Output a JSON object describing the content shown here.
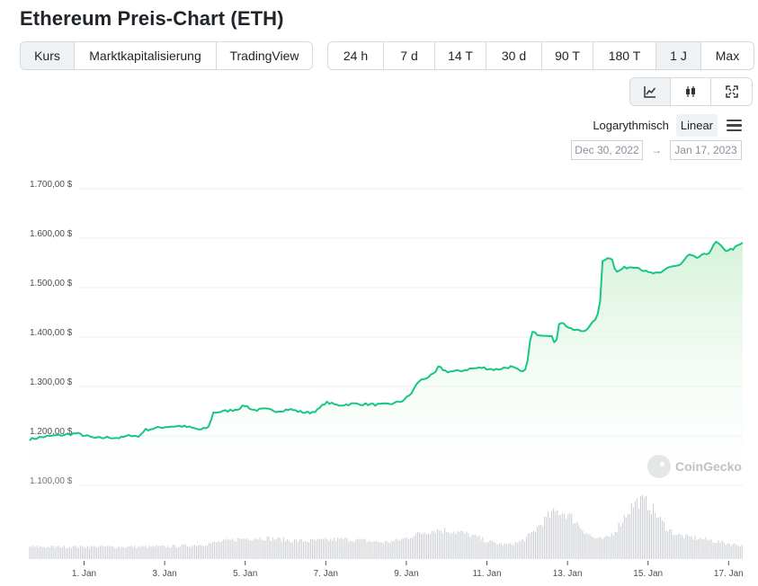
{
  "page_title": "Ethereum Preis-Chart (ETH)",
  "chart_type_tabs": [
    {
      "label": "Kurs",
      "active": true
    },
    {
      "label": "Marktkapitalisierung",
      "active": false
    },
    {
      "label": "TradingView",
      "active": false
    }
  ],
  "range_tabs": [
    {
      "label": "24 h",
      "active": false
    },
    {
      "label": "7 d",
      "active": false
    },
    {
      "label": "14 T",
      "active": false
    },
    {
      "label": "30 d",
      "active": false
    },
    {
      "label": "90 T",
      "active": false
    },
    {
      "label": "180 T",
      "active": false
    },
    {
      "label": "1 J",
      "active": true
    },
    {
      "label": "Max",
      "active": false
    }
  ],
  "view_buttons": [
    {
      "icon": "line-chart-icon",
      "active": true
    },
    {
      "icon": "candlestick-icon",
      "active": false
    },
    {
      "icon": "fullscreen-icon",
      "active": false
    }
  ],
  "scale": {
    "log_label": "Logarythmisch",
    "linear_label": "Linear",
    "selected": "Linear"
  },
  "date_range": {
    "from": "Dec 30, 2022",
    "arrow": "→",
    "to": "Jan 17, 2023"
  },
  "watermark": "CoinGecko",
  "colors": {
    "line": "#16c784",
    "fill_top": "#d3f2d8",
    "volume": "#c9ccd1",
    "grid": "#eceef0"
  },
  "chart_data": {
    "type": "area",
    "title": "Ethereum Preis-Chart (ETH)",
    "xlabel": "",
    "ylabel": "",
    "y_ticks": [
      "1.700,00 $",
      "1.600,00 $",
      "1.500,00 $",
      "1.400,00 $",
      "1.300,00 $",
      "1.200,00 $",
      "1.100,00 $"
    ],
    "y_tick_values": [
      1700,
      1600,
      1500,
      1400,
      1300,
      1200,
      1100
    ],
    "ylim": [
      1100,
      1700
    ],
    "x_range_days": [
      30.65,
      48.35
    ],
    "x_ticks": [
      {
        "label": "1. Jan",
        "day": 32
      },
      {
        "label": "3. Jan",
        "day": 34
      },
      {
        "label": "5. Jan",
        "day": 36
      },
      {
        "label": "7. Jan",
        "day": 38
      },
      {
        "label": "9. Jan",
        "day": 40
      },
      {
        "label": "11. Jan",
        "day": 42
      },
      {
        "label": "13. Jan",
        "day": 44
      },
      {
        "label": "15. Jan",
        "day": 46
      },
      {
        "label": "17. Jan",
        "day": 48
      }
    ],
    "series": [
      {
        "values": [
          [
            30.65,
            1193
          ],
          [
            30.9,
            1197
          ],
          [
            31.2,
            1200
          ],
          [
            31.5,
            1202
          ],
          [
            31.8,
            1205
          ],
          [
            32.0,
            1201
          ],
          [
            32.3,
            1195
          ],
          [
            32.6,
            1197
          ],
          [
            32.9,
            1196
          ],
          [
            33.2,
            1202
          ],
          [
            33.35,
            1198
          ],
          [
            33.5,
            1212
          ],
          [
            33.8,
            1216
          ],
          [
            34.1,
            1219
          ],
          [
            34.4,
            1220
          ],
          [
            34.7,
            1216
          ],
          [
            34.9,
            1212
          ],
          [
            35.1,
            1218
          ],
          [
            35.2,
            1247
          ],
          [
            35.5,
            1250
          ],
          [
            35.8,
            1254
          ],
          [
            36.0,
            1262
          ],
          [
            36.2,
            1252
          ],
          [
            36.5,
            1254
          ],
          [
            36.8,
            1250
          ],
          [
            37.1,
            1254
          ],
          [
            37.4,
            1248
          ],
          [
            37.6,
            1247
          ],
          [
            37.8,
            1252
          ],
          [
            38.0,
            1268
          ],
          [
            38.3,
            1262
          ],
          [
            38.7,
            1265
          ],
          [
            39.0,
            1264
          ],
          [
            39.4,
            1263
          ],
          [
            39.7,
            1266
          ],
          [
            39.9,
            1271
          ],
          [
            40.1,
            1283
          ],
          [
            40.3,
            1310
          ],
          [
            40.5,
            1318
          ],
          [
            40.7,
            1325
          ],
          [
            40.8,
            1340
          ],
          [
            41.0,
            1330
          ],
          [
            41.3,
            1331
          ],
          [
            41.6,
            1336
          ],
          [
            41.9,
            1338
          ],
          [
            42.2,
            1334
          ],
          [
            42.6,
            1340
          ],
          [
            42.9,
            1328
          ],
          [
            43.0,
            1345
          ],
          [
            43.1,
            1410
          ],
          [
            43.3,
            1405
          ],
          [
            43.6,
            1404
          ],
          [
            43.7,
            1380
          ],
          [
            43.8,
            1433
          ],
          [
            44.1,
            1415
          ],
          [
            44.4,
            1412
          ],
          [
            44.6,
            1425
          ],
          [
            44.8,
            1451
          ],
          [
            44.85,
            1555
          ],
          [
            45.1,
            1562
          ],
          [
            45.2,
            1530
          ],
          [
            45.4,
            1540
          ],
          [
            45.7,
            1543
          ],
          [
            46.0,
            1530
          ],
          [
            46.3,
            1528
          ],
          [
            46.5,
            1542
          ],
          [
            46.8,
            1545
          ],
          [
            47.0,
            1566
          ],
          [
            47.2,
            1560
          ],
          [
            47.5,
            1570
          ],
          [
            47.7,
            1593
          ],
          [
            47.9,
            1575
          ],
          [
            48.1,
            1578
          ],
          [
            48.35,
            1590
          ]
        ]
      }
    ]
  }
}
